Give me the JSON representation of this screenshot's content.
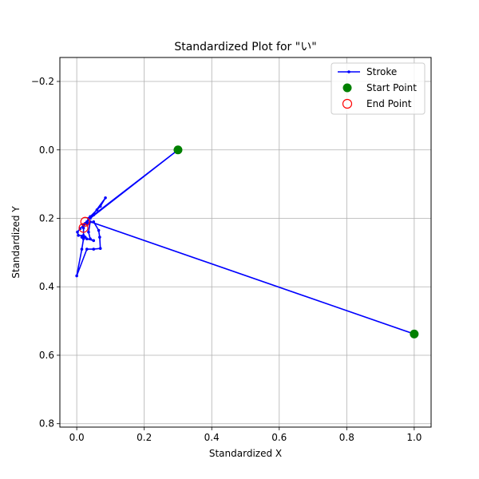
{
  "chart_data": {
    "type": "line",
    "title": "Standardized Plot for \"い\"",
    "xlabel": "Standardized X",
    "ylabel": "Standardized Y",
    "xlim": [
      -0.05,
      1.05
    ],
    "ylim": [
      0.81,
      -0.27
    ],
    "y_inverted": true,
    "grid": true,
    "legend_position": "top-right",
    "xticks": [
      0.0,
      0.2,
      0.4,
      0.6,
      0.8,
      1.0
    ],
    "xtick_labels": [
      "0.0",
      "0.2",
      "0.4",
      "0.6",
      "0.8",
      "1.0"
    ],
    "yticks": [
      -0.2,
      0.0,
      0.2,
      0.4,
      0.6,
      0.8
    ],
    "ytick_labels": [
      "−0.2",
      "0.0",
      "0.2",
      "0.4",
      "0.6",
      "0.8"
    ],
    "legend": [
      {
        "label": "Stroke",
        "color": "#0000ff",
        "kind": "line-marker"
      },
      {
        "label": "Start Point",
        "color": "#008000",
        "kind": "filled-circle"
      },
      {
        "label": "End Point",
        "color": "#ff0000",
        "kind": "hollow-circle"
      }
    ],
    "series": [
      {
        "name": "Stroke",
        "color": "#0000ff",
        "points": [
          [
            1.0,
            0.538
          ],
          [
            0.04,
            0.21
          ],
          [
            0.035,
            0.24
          ],
          [
            0.04,
            0.26
          ],
          [
            0.05,
            0.265
          ],
          [
            0.03,
            0.26
          ],
          [
            0.025,
            0.255
          ],
          [
            0.015,
            0.255
          ],
          [
            0.02,
            0.25
          ],
          [
            0.005,
            0.25
          ],
          [
            0.002,
            0.24
          ],
          [
            0.01,
            0.23
          ],
          [
            0.025,
            0.215
          ],
          [
            0.05,
            0.21
          ],
          [
            0.065,
            0.235
          ],
          [
            0.068,
            0.255
          ],
          [
            0.07,
            0.288
          ],
          [
            0.05,
            0.29
          ],
          [
            0.03,
            0.29
          ],
          [
            0.0,
            0.368
          ],
          [
            0.015,
            0.29
          ],
          [
            0.02,
            0.26
          ],
          [
            0.02,
            0.22
          ],
          [
            0.03,
            0.215
          ],
          [
            0.04,
            0.195
          ],
          [
            0.06,
            0.175
          ],
          [
            0.07,
            0.165
          ],
          [
            0.085,
            0.14
          ],
          [
            0.04,
            0.2
          ],
          [
            0.3,
            0.0
          ],
          [
            0.05,
            0.19
          ],
          [
            0.035,
            0.2
          ],
          [
            0.03,
            0.21
          ],
          [
            0.025,
            0.215
          ],
          [
            0.02,
            0.22
          ],
          [
            0.02,
            0.228
          ]
        ]
      }
    ],
    "start_points": [
      [
        0.3,
        0.0
      ],
      [
        1.0,
        0.538
      ]
    ],
    "end_points": [
      [
        0.02,
        0.228
      ],
      [
        0.025,
        0.21
      ]
    ]
  }
}
